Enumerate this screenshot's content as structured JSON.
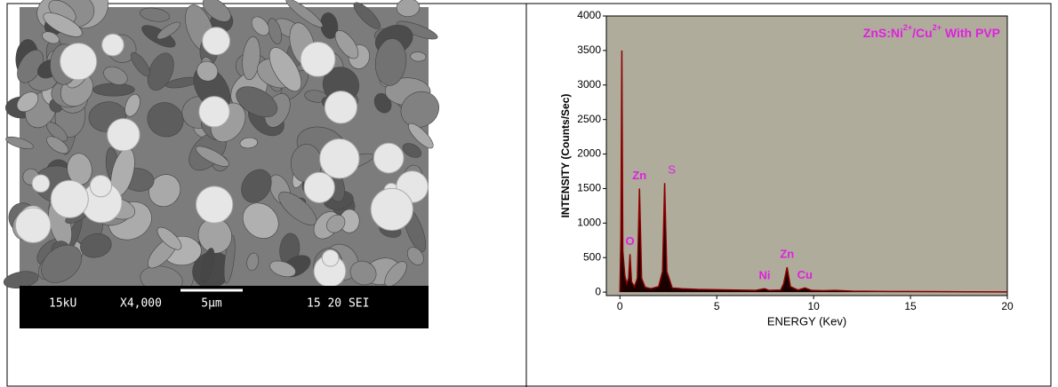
{
  "sem_image": {
    "bar_texts": [
      "15kU",
      "X4,000",
      "5μm",
      "15 20 SEI"
    ]
  },
  "spectrum": {
    "type": "line",
    "title_segments": [
      {
        "text": "ZnS:Ni"
      },
      {
        "text": "2+",
        "sup": true
      },
      {
        "text": "/Cu"
      },
      {
        "text": "2+",
        "sup": true
      },
      {
        "text": " With PVP"
      }
    ],
    "x_label": "ENERGY (Kev)",
    "y_label": "INTENSITY (Counts/Sec)",
    "xlim": [
      -0.7,
      20
    ],
    "ylim": [
      -50,
      4000
    ],
    "xticks": [
      0,
      5,
      10,
      15,
      20
    ],
    "yticks": [
      0,
      500,
      1000,
      1500,
      2000,
      2500,
      3000,
      3500,
      4000
    ],
    "background": "#b0ac9c",
    "color": "#8b0000",
    "fill": "#1a0000",
    "label_color": "#e020e0",
    "x": [
      0,
      0.05,
      0.1,
      0.15,
      0.25,
      0.35,
      0.45,
      0.52,
      0.6,
      0.75,
      0.9,
      1.01,
      1.12,
      1.3,
      1.6,
      2.0,
      2.2,
      2.31,
      2.42,
      2.7,
      3.2,
      4,
      5,
      6,
      7,
      7.47,
      7.7,
      8.3,
      8.45,
      8.63,
      8.8,
      9.2,
      9.55,
      9.9,
      10.5,
      11.1,
      12,
      14,
      16,
      18,
      20
    ],
    "values": [
      0,
      800,
      3500,
      600,
      250,
      120,
      200,
      550,
      150,
      80,
      200,
      1500,
      200,
      70,
      50,
      80,
      300,
      1580,
      300,
      60,
      50,
      40,
      35,
      30,
      25,
      50,
      25,
      30,
      120,
      360,
      80,
      30,
      60,
      25,
      20,
      25,
      15,
      10,
      8,
      5,
      3
    ],
    "annotations": [
      {
        "text": "O",
        "x": 0.52
      },
      {
        "text": "Zn",
        "x": 1.01
      },
      {
        "text": "S",
        "x": 2.31
      },
      {
        "text": "Ni",
        "x": 7.47
      },
      {
        "text": "Zn",
        "x": 8.63
      },
      {
        "text": "Cu",
        "x": 9.55
      }
    ]
  }
}
